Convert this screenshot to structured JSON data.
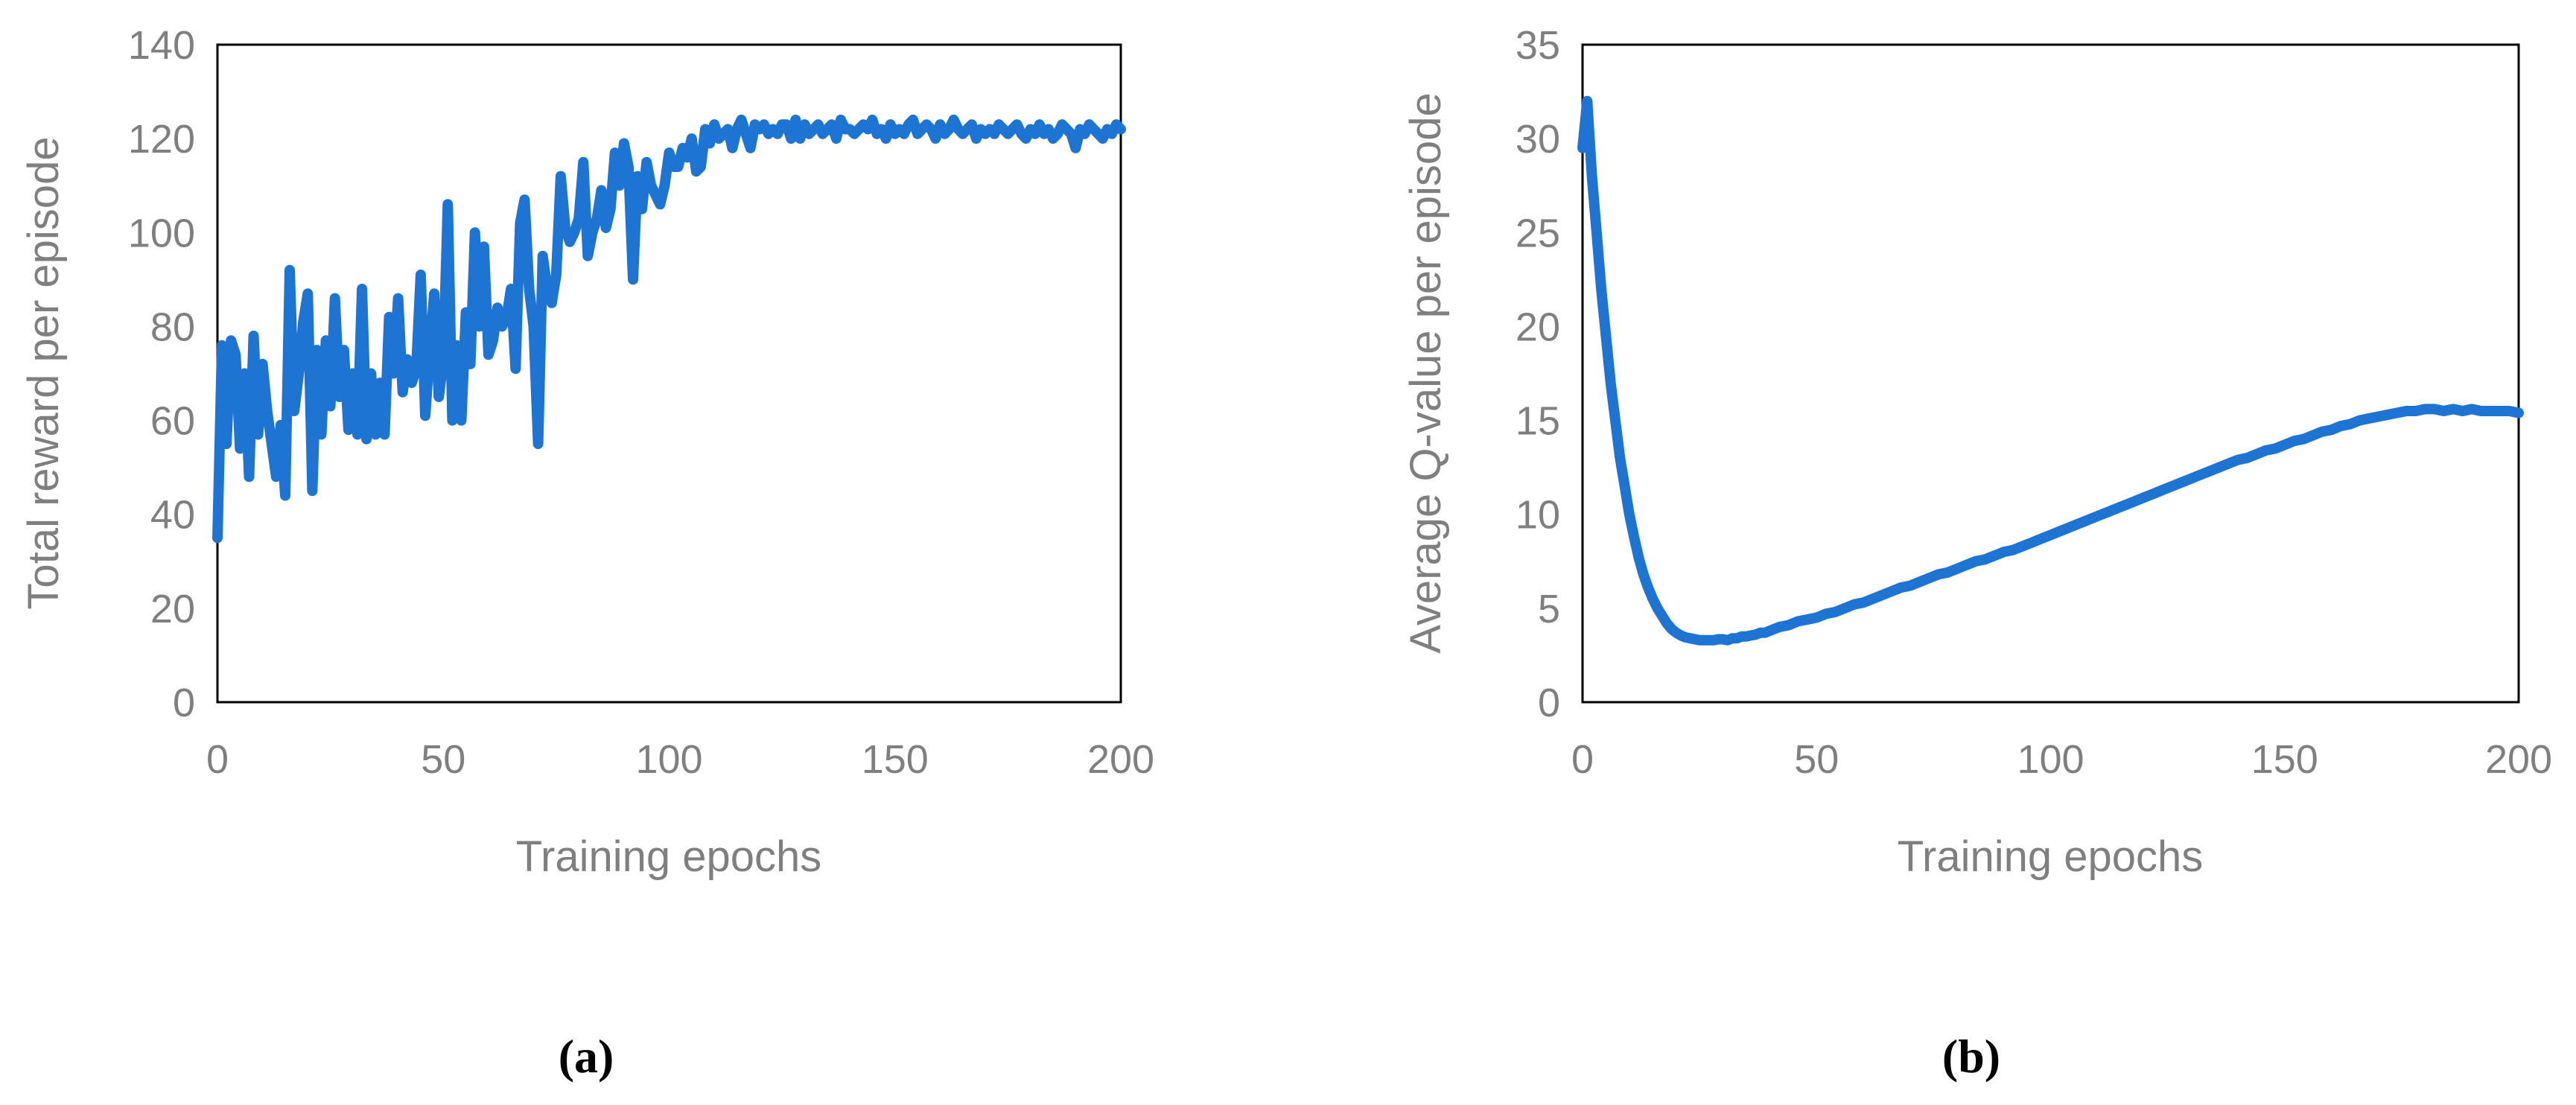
{
  "colors": {
    "series": "#1e74d2",
    "frame": "#000000",
    "text": "#7f7f7f"
  },
  "chart_data": [
    {
      "type": "line",
      "panel_label": "(a)",
      "title": "",
      "xlabel": "Training epochs",
      "ylabel": "Total reward per episode",
      "xlim": [
        0,
        200
      ],
      "ylim": [
        0,
        140
      ],
      "xticks": [
        0,
        50,
        100,
        150,
        200
      ],
      "yticks": [
        0,
        20,
        40,
        60,
        80,
        100,
        120,
        140
      ],
      "grid": false,
      "legend": "none",
      "series": [
        {
          "x": [
            0,
            1,
            2,
            3,
            4,
            5,
            6,
            7,
            8,
            9,
            10,
            11,
            12,
            13,
            14,
            15,
            16,
            17,
            18,
            19,
            20,
            21,
            22,
            23,
            24,
            25,
            26,
            27,
            28,
            29,
            30,
            31,
            32,
            33,
            34,
            35,
            36,
            37,
            38,
            39,
            40,
            41,
            42,
            43,
            44,
            45,
            46,
            47,
            48,
            49,
            50,
            51,
            52,
            53,
            54,
            55,
            56,
            57,
            58,
            59,
            60,
            61,
            62,
            63,
            64,
            65,
            66,
            67,
            68,
            69,
            70,
            71,
            72,
            73,
            74,
            75,
            76,
            77,
            78,
            79,
            80,
            81,
            82,
            83,
            84,
            85,
            86,
            87,
            88,
            89,
            90,
            91,
            92,
            93,
            94,
            95,
            96,
            97,
            98,
            99,
            100,
            101,
            102,
            103,
            104,
            105,
            106,
            107,
            108,
            109,
            110,
            111,
            112,
            113,
            114,
            115,
            116,
            117,
            118,
            119,
            120,
            121,
            122,
            123,
            124,
            125,
            126,
            127,
            128,
            129,
            130,
            131,
            132,
            133,
            134,
            135,
            136,
            137,
            138,
            139,
            140,
            141,
            142,
            143,
            144,
            145,
            146,
            147,
            148,
            149,
            150,
            151,
            152,
            153,
            154,
            155,
            156,
            157,
            158,
            159,
            160,
            161,
            162,
            163,
            164,
            165,
            166,
            167,
            168,
            169,
            170,
            171,
            172,
            173,
            174,
            175,
            176,
            177,
            178,
            179,
            180,
            181,
            182,
            183,
            184,
            185,
            186,
            187,
            188,
            189,
            190,
            191,
            192,
            193,
            194,
            195,
            196,
            197,
            198,
            199,
            200
          ],
          "values": [
            35,
            76,
            55,
            77,
            74,
            54,
            70,
            48,
            78,
            57,
            72,
            62,
            55,
            48,
            59,
            44,
            92,
            62,
            70,
            81,
            87,
            45,
            75,
            57,
            77,
            63,
            86,
            65,
            75,
            58,
            70,
            57,
            88,
            56,
            70,
            57,
            68,
            57,
            82,
            70,
            86,
            66,
            73,
            68,
            71,
            91,
            61,
            75,
            87,
            65,
            73,
            106,
            60,
            76,
            60,
            83,
            72,
            100,
            80,
            97,
            74,
            77,
            84,
            80,
            82,
            88,
            71,
            102,
            107,
            88,
            80,
            55,
            95,
            88,
            85,
            91,
            112,
            101,
            98,
            100,
            103,
            115,
            95,
            100,
            103,
            109,
            101,
            105,
            117,
            110,
            119,
            114,
            90,
            112,
            105,
            115,
            110,
            108,
            106,
            110,
            117,
            114,
            114,
            118,
            116,
            120,
            113,
            114,
            122,
            119,
            123,
            120,
            121,
            122,
            118,
            122,
            124,
            121,
            118,
            123,
            122,
            123,
            121,
            122,
            121,
            123,
            123,
            120,
            124,
            120,
            123,
            121,
            122,
            123,
            121,
            122,
            123,
            120,
            124,
            122,
            122,
            121,
            122,
            123,
            122,
            124,
            121,
            122,
            120,
            123,
            121,
            122,
            121,
            123,
            124,
            121,
            122,
            123,
            122,
            120,
            123,
            121,
            122,
            124,
            122,
            121,
            122,
            123,
            120,
            122,
            121,
            122,
            121,
            123,
            122,
            121,
            122,
            123,
            121,
            120,
            122,
            121,
            123,
            121,
            122,
            120,
            121,
            123,
            122,
            121,
            118,
            122,
            121,
            123,
            122,
            121,
            120,
            122,
            121,
            123,
            122
          ]
        }
      ]
    },
    {
      "type": "line",
      "panel_label": "(b)",
      "title": "",
      "xlabel": "Training epochs",
      "ylabel": "Average Q-value per episode",
      "xlim": [
        0,
        200
      ],
      "ylim": [
        0,
        35
      ],
      "xticks": [
        0,
        50,
        100,
        150,
        200
      ],
      "yticks": [
        0,
        5,
        10,
        15,
        20,
        25,
        30,
        35
      ],
      "grid": false,
      "legend": "none",
      "series": [
        {
          "x": [
            0,
            1,
            2,
            3,
            4,
            5,
            6,
            7,
            8,
            9,
            10,
            11,
            12,
            13,
            14,
            15,
            16,
            17,
            18,
            19,
            20,
            21,
            22,
            23,
            24,
            25,
            26,
            27,
            28,
            29,
            30,
            31,
            32,
            33,
            34,
            35,
            36,
            37,
            38,
            39,
            40,
            42,
            44,
            46,
            48,
            50,
            52,
            54,
            56,
            58,
            60,
            62,
            64,
            66,
            68,
            70,
            72,
            74,
            76,
            78,
            80,
            82,
            84,
            86,
            88,
            90,
            92,
            94,
            96,
            98,
            100,
            102,
            104,
            106,
            108,
            110,
            112,
            114,
            116,
            118,
            120,
            122,
            124,
            126,
            128,
            130,
            132,
            134,
            136,
            138,
            140,
            142,
            144,
            146,
            148,
            150,
            152,
            154,
            156,
            158,
            160,
            162,
            164,
            166,
            168,
            170,
            172,
            174,
            176,
            178,
            180,
            182,
            184,
            186,
            188,
            190,
            192,
            194,
            196,
            198,
            200
          ],
          "values": [
            29.5,
            32,
            28,
            25,
            22,
            19.5,
            17,
            15,
            13,
            11.5,
            10,
            8.8,
            7.7,
            6.8,
            6.1,
            5.5,
            5.0,
            4.6,
            4.2,
            3.9,
            3.7,
            3.55,
            3.45,
            3.4,
            3.35,
            3.3,
            3.3,
            3.3,
            3.3,
            3.35,
            3.35,
            3.3,
            3.4,
            3.4,
            3.5,
            3.5,
            3.55,
            3.6,
            3.7,
            3.7,
            3.8,
            4.0,
            4.1,
            4.3,
            4.4,
            4.5,
            4.7,
            4.8,
            5.0,
            5.2,
            5.3,
            5.5,
            5.7,
            5.9,
            6.1,
            6.2,
            6.4,
            6.6,
            6.8,
            6.9,
            7.1,
            7.3,
            7.5,
            7.6,
            7.8,
            8.0,
            8.1,
            8.3,
            8.5,
            8.7,
            8.9,
            9.1,
            9.3,
            9.5,
            9.7,
            9.9,
            10.1,
            10.3,
            10.5,
            10.7,
            10.9,
            11.1,
            11.3,
            11.5,
            11.7,
            11.9,
            12.1,
            12.3,
            12.5,
            12.7,
            12.9,
            13.0,
            13.2,
            13.4,
            13.5,
            13.7,
            13.9,
            14.0,
            14.2,
            14.4,
            14.5,
            14.7,
            14.8,
            15.0,
            15.1,
            15.2,
            15.3,
            15.4,
            15.5,
            15.5,
            15.6,
            15.6,
            15.5,
            15.6,
            15.5,
            15.6,
            15.5,
            15.5,
            15.5,
            15.5,
            15.4
          ]
        }
      ]
    }
  ]
}
